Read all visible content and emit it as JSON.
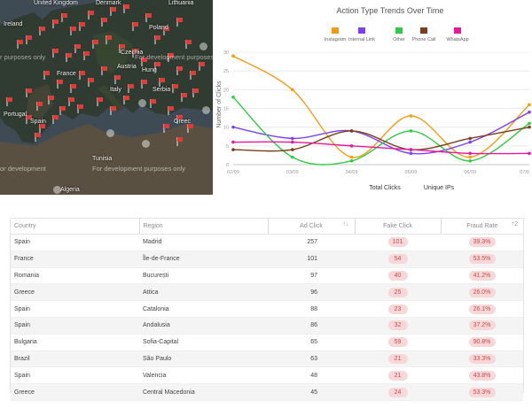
{
  "map": {
    "dev_text": "For development purposes only",
    "dev_text_short": "r purposes only",
    "dev_text_left": "or development",
    "dev_text_right": "For development purposes only",
    "cities": [
      "United Kingdom",
      "Denmark",
      "Lithuania",
      "Ireland",
      "Poland",
      "Czechia",
      "France",
      "Austria",
      "Hung",
      "Italy",
      "Serbia",
      "Portugal",
      "Spain",
      "Greec",
      "Tunisia",
      "Algeria"
    ]
  },
  "chart": {
    "title": "Action Type Trends Over Time",
    "ylabel": "Number of Clicks",
    "footer": [
      "Total Clicks",
      "Unique IPs"
    ],
    "legend": [
      {
        "name": "Instagram",
        "color": "#f39c12"
      },
      {
        "name": "Internal Link",
        "color": "#7e3ff2"
      },
      {
        "name": "Other",
        "color": "#2ecc40"
      },
      {
        "name": "Phone Call",
        "color": "#7b3f1a"
      },
      {
        "name": "WhatsApp",
        "color": "#e8179b"
      }
    ]
  },
  "chart_data": {
    "type": "line",
    "title": "Action Type Trends Over Time",
    "xlabel": "",
    "ylabel": "Number of Clicks",
    "categories": [
      "02/09",
      "03/09",
      "04/09",
      "05/09",
      "06/09",
      "07/0"
    ],
    "ylim": [
      0,
      30
    ],
    "yticks": [
      0,
      5,
      10,
      15,
      20,
      25,
      30
    ],
    "series": [
      {
        "name": "Instagram",
        "color": "#f39c12",
        "values": [
          29,
          20,
          2,
          13,
          2,
          16
        ]
      },
      {
        "name": "Internal Link",
        "color": "#7e3ff2",
        "values": [
          10,
          7,
          9,
          3,
          6,
          14
        ]
      },
      {
        "name": "Other",
        "color": "#2ecc40",
        "values": [
          18,
          2,
          1,
          9,
          1,
          11
        ]
      },
      {
        "name": "Phone Call",
        "color": "#7b3f1a",
        "values": [
          4,
          4,
          9,
          4,
          7,
          10
        ]
      },
      {
        "name": "WhatsApp",
        "color": "#e8179b",
        "values": [
          6,
          6,
          5,
          4,
          3,
          3
        ]
      }
    ]
  },
  "table": {
    "headers": [
      "Country",
      "Region",
      "Ad Click",
      "Fake Click",
      "Fraud Rate"
    ],
    "sort_icons": [
      "↑↓",
      "↑2"
    ],
    "rows": [
      [
        "Spain",
        "Madrid",
        "257",
        "101",
        "39.3%"
      ],
      [
        "France",
        "Île-de-France",
        "101",
        "54",
        "53.5%"
      ],
      [
        "Romania",
        "București",
        "97",
        "40",
        "41.2%"
      ],
      [
        "Greece",
        "Attica",
        "96",
        "25",
        "26.0%"
      ],
      [
        "Spain",
        "Catalonia",
        "88",
        "23",
        "26.1%"
      ],
      [
        "Spain",
        "Andalusia",
        "86",
        "32",
        "37.2%"
      ],
      [
        "Bulgaria",
        "Sofia-Capital",
        "65",
        "59",
        "90.8%"
      ],
      [
        "Brazil",
        "São Paulo",
        "63",
        "21",
        "33.3%"
      ],
      [
        "Spain",
        "Valencia",
        "48",
        "21",
        "43.8%"
      ],
      [
        "Greece",
        "Central Macedonia",
        "45",
        "24",
        "53.3%"
      ]
    ]
  }
}
